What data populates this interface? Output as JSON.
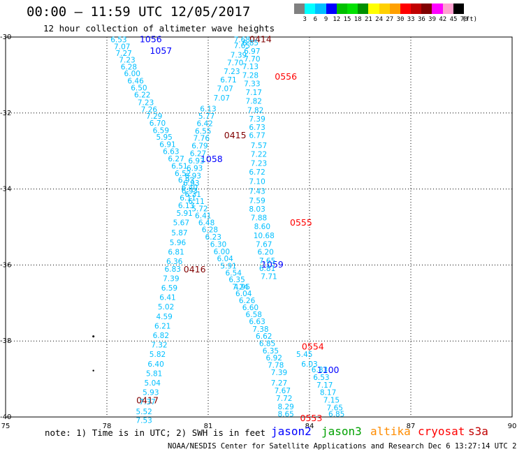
{
  "header": {
    "title": "00:00 – 11:59 UTC 12/05/2017",
    "subtitle": "12 hour collection of altimeter wave heights"
  },
  "colorbar": {
    "colors": [
      "#808080",
      "#00ffff",
      "#00bfff",
      "#0000ff",
      "#00c000",
      "#00e000",
      "#009000",
      "#ffff00",
      "#ffd000",
      "#ffa000",
      "#ff0000",
      "#c00000",
      "#800000",
      "#ff00ff",
      "#ffa0d0",
      "#000000"
    ],
    "labels": [
      "3",
      "6",
      "9",
      "12",
      "15",
      "18",
      "21",
      "24",
      "27",
      "30",
      "33",
      "36",
      "39",
      "42",
      "45",
      "70",
      "(ft)"
    ]
  },
  "note": "note: 1) Time is in UTC; 2) SWH is in feet",
  "legend": [
    {
      "name": "jason2",
      "color": "#0000ff"
    },
    {
      "name": "jason3",
      "color": "#00a000"
    },
    {
      "name": "altika",
      "color": "#ff8c00"
    },
    {
      "name": "cryosat",
      "color": "#ff0000"
    },
    {
      "name": "s3a",
      "color": "#c00000"
    }
  ],
  "footer": "NOAA/NESDIS Center for Satellite Applications and Research    Dec  6 13:27:14 UTC 2017",
  "chart_data": {
    "type": "scatter",
    "title": "00:00 – 11:59 UTC 12/05/2017",
    "subtitle": "12 hour collection of altimeter wave heights",
    "xlabel": "",
    "ylabel": "",
    "xlim": [
      75,
      90
    ],
    "ylim": [
      -40,
      -30
    ],
    "x_ticks": [
      "75",
      "78",
      "81",
      "84",
      "87",
      "90"
    ],
    "y_ticks": [
      "-30",
      "-32",
      "-34",
      "-36",
      "-38",
      "-40"
    ],
    "grid": true,
    "series": [
      {
        "name": "jason2",
        "color": "#0000ff",
        "labels": [
          {
            "text": "1056",
            "x": 79.3,
            "y": -30.05
          },
          {
            "text": "1057",
            "x": 79.6,
            "y": -30.35
          },
          {
            "text": "1058",
            "x": 81.1,
            "y": -33.2
          },
          {
            "text": "1059",
            "x": 82.9,
            "y": -35.97
          },
          {
            "text": "1100",
            "x": 84.55,
            "y": -38.75
          }
        ]
      },
      {
        "name": "s3a",
        "color": "#800000",
        "labels": [
          {
            "text": "0414",
            "x": 82.55,
            "y": -30.05
          },
          {
            "text": "0415",
            "x": 81.8,
            "y": -32.57
          },
          {
            "text": "0416",
            "x": 80.6,
            "y": -36.1
          },
          {
            "text": "0417",
            "x": 79.2,
            "y": -39.55
          }
        ]
      },
      {
        "name": "cryosat",
        "color": "#ff0000",
        "labels": [
          {
            "text": "0556",
            "x": 83.3,
            "y": -31.03
          },
          {
            "text": "0555",
            "x": 83.75,
            "y": -34.87
          },
          {
            "text": "0554",
            "x": 84.1,
            "y": -38.13
          },
          {
            "text": "0553",
            "x": 84.05,
            "y": -40.02
          }
        ]
      },
      {
        "name": "track-1056",
        "color": "#00bfff",
        "points": [
          {
            "x": 78.35,
            "y": -30.06,
            "swh": "6.53"
          },
          {
            "x": 78.45,
            "y": -30.25,
            "swh": "7.07"
          },
          {
            "x": 78.5,
            "y": -30.42,
            "swh": "7.27"
          },
          {
            "x": 78.6,
            "y": -30.6,
            "swh": "7.23"
          },
          {
            "x": 78.65,
            "y": -30.78,
            "swh": "6.28"
          },
          {
            "x": 78.75,
            "y": -30.96,
            "swh": "6.00"
          },
          {
            "x": 78.85,
            "y": -31.15,
            "swh": "6.46"
          },
          {
            "x": 78.95,
            "y": -31.33,
            "swh": "6.50"
          },
          {
            "x": 79.05,
            "y": -31.52,
            "swh": "6.22"
          },
          {
            "x": 79.15,
            "y": -31.72,
            "swh": "7.23"
          },
          {
            "x": 79.25,
            "y": -31.9,
            "swh": "7.26"
          },
          {
            "x": 79.4,
            "y": -32.08,
            "swh": "7.29"
          },
          {
            "x": 79.5,
            "y": -32.26,
            "swh": "6.70"
          },
          {
            "x": 79.6,
            "y": -32.45,
            "swh": "6.59"
          },
          {
            "x": 79.7,
            "y": -32.63,
            "swh": "5.95"
          },
          {
            "x": 79.8,
            "y": -32.82,
            "swh": "6.91"
          },
          {
            "x": 79.9,
            "y": -33.01,
            "swh": "6.63"
          },
          {
            "x": 80.05,
            "y": -33.2,
            "swh": "6.27"
          },
          {
            "x": 80.15,
            "y": -33.39,
            "swh": "6.51"
          },
          {
            "x": 80.25,
            "y": -33.58,
            "swh": "6.52"
          },
          {
            "x": 80.35,
            "y": -33.76,
            "swh": "6.93"
          },
          {
            "x": 80.45,
            "y": -33.95,
            "swh": "6.40"
          },
          {
            "x": 80.55,
            "y": -34.14,
            "swh": "6.31"
          },
          {
            "x": 80.65,
            "y": -34.32,
            "swh": "6.11"
          },
          {
            "x": 80.75,
            "y": -34.51,
            "swh": "5.72"
          },
          {
            "x": 80.85,
            "y": -34.7,
            "swh": "6.41"
          },
          {
            "x": 80.95,
            "y": -34.88,
            "swh": "6.48"
          },
          {
            "x": 81.05,
            "y": -35.06,
            "swh": "6.28"
          },
          {
            "x": 81.15,
            "y": -35.26,
            "swh": "6.23"
          },
          {
            "x": 81.3,
            "y": -35.45,
            "swh": "6.30"
          },
          {
            "x": 81.4,
            "y": -35.64,
            "swh": "6.00"
          },
          {
            "x": 81.5,
            "y": -35.83,
            "swh": "6.04"
          },
          {
            "x": 81.6,
            "y": -36.02,
            "swh": "5.91"
          },
          {
            "x": 81.75,
            "y": -36.2,
            "swh": "6.54"
          },
          {
            "x": 81.85,
            "y": -36.38,
            "swh": "6.35"
          },
          {
            "x": 82.0,
            "y": -36.57,
            "swh": "4.95"
          }
        ]
      },
      {
        "name": "track-1057",
        "color": "#00bfff",
        "points": [
          {
            "x": 81.95,
            "y": -36.57,
            "swh": "7.24"
          },
          {
            "x": 82.05,
            "y": -36.75,
            "swh": "6.04"
          },
          {
            "x": 82.15,
            "y": -36.93,
            "swh": "6.26"
          },
          {
            "x": 82.25,
            "y": -37.11,
            "swh": "6.60"
          },
          {
            "x": 82.35,
            "y": -37.3,
            "swh": "6.58"
          },
          {
            "x": 82.45,
            "y": -37.48,
            "swh": "6.63"
          },
          {
            "x": 82.55,
            "y": -37.68,
            "swh": "7.38"
          },
          {
            "x": 82.65,
            "y": -37.87,
            "swh": "6.62"
          },
          {
            "x": 82.75,
            "y": -38.06,
            "swh": "6.85"
          },
          {
            "x": 82.85,
            "y": -38.25,
            "swh": "6.35"
          },
          {
            "x": 82.95,
            "y": -38.44,
            "swh": "6.92"
          },
          {
            "x": 83.0,
            "y": -38.63,
            "swh": "7.78"
          },
          {
            "x": 83.1,
            "y": -38.82,
            "swh": "7.39"
          },
          {
            "x": 83.1,
            "y": -39.1,
            "swh": "7.27"
          },
          {
            "x": 83.2,
            "y": -39.3,
            "swh": "7.67"
          },
          {
            "x": 83.25,
            "y": -39.5,
            "swh": "7.72"
          },
          {
            "x": 83.3,
            "y": -39.72,
            "swh": "8.29"
          },
          {
            "x": 83.3,
            "y": -39.92,
            "swh": "8.65"
          }
        ]
      },
      {
        "name": "track-1058",
        "color": "#00bfff",
        "points": [
          {
            "x": 81.0,
            "y": -31.88,
            "swh": "6.13"
          },
          {
            "x": 80.95,
            "y": -32.08,
            "swh": "5.77"
          },
          {
            "x": 80.9,
            "y": -32.27,
            "swh": "6.42"
          },
          {
            "x": 80.85,
            "y": -32.47,
            "swh": "6.55"
          },
          {
            "x": 80.8,
            "y": -32.66,
            "swh": "7.76"
          },
          {
            "x": 80.75,
            "y": -32.86,
            "swh": "6.79"
          },
          {
            "x": 80.7,
            "y": -33.06,
            "swh": "6.27"
          },
          {
            "x": 80.65,
            "y": -33.25,
            "swh": "6.93"
          },
          {
            "x": 80.6,
            "y": -33.45,
            "swh": "6.93"
          },
          {
            "x": 80.55,
            "y": -33.65,
            "swh": "6.93"
          },
          {
            "x": 80.5,
            "y": -33.84,
            "swh": "6.93"
          },
          {
            "x": 80.45,
            "y": -34.04,
            "swh": "6.93"
          },
          {
            "x": 80.4,
            "y": -34.23,
            "swh": "6.11"
          },
          {
            "x": 80.35,
            "y": -34.43,
            "swh": "6.13"
          },
          {
            "x": 80.3,
            "y": -34.63,
            "swh": "5.91"
          },
          {
            "x": 80.2,
            "y": -34.88,
            "swh": "5.67"
          },
          {
            "x": 80.15,
            "y": -35.15,
            "swh": "5.87"
          },
          {
            "x": 80.1,
            "y": -35.4,
            "swh": "5.96"
          },
          {
            "x": 80.05,
            "y": -35.65,
            "swh": "6.81"
          },
          {
            "x": 80.0,
            "y": -35.9,
            "swh": "6.36"
          },
          {
            "x": 79.95,
            "y": -36.1,
            "swh": "6.83"
          },
          {
            "x": 79.9,
            "y": -36.35,
            "swh": "7.39"
          },
          {
            "x": 79.85,
            "y": -36.6,
            "swh": "6.59"
          },
          {
            "x": 79.8,
            "y": -36.85,
            "swh": "6.41"
          },
          {
            "x": 79.75,
            "y": -37.1,
            "swh": "5.02"
          },
          {
            "x": 79.7,
            "y": -37.35,
            "swh": "4.59"
          },
          {
            "x": 79.65,
            "y": -37.6,
            "swh": "6.21"
          },
          {
            "x": 79.6,
            "y": -37.85,
            "swh": "6.82"
          },
          {
            "x": 79.55,
            "y": -38.1,
            "swh": "7.32"
          },
          {
            "x": 79.5,
            "y": -38.35,
            "swh": "5.82"
          },
          {
            "x": 79.45,
            "y": -38.6,
            "swh": "6.40"
          },
          {
            "x": 79.4,
            "y": -38.85,
            "swh": "5.81"
          },
          {
            "x": 79.35,
            "y": -39.1,
            "swh": "5.04"
          },
          {
            "x": 79.3,
            "y": -39.35,
            "swh": "5.93"
          },
          {
            "x": 79.2,
            "y": -39.6,
            "swh": "7.37"
          },
          {
            "x": 79.1,
            "y": -39.85,
            "swh": "5.52"
          },
          {
            "x": 79.1,
            "y": -40.08,
            "swh": "7.53"
          }
        ]
      },
      {
        "name": "track-0414",
        "color": "#00bfff",
        "points": [
          {
            "x": 82.0,
            "y": -30.06,
            "swh": "7.68"
          },
          {
            "x": 82.0,
            "y": -30.22,
            "swh": "7.65"
          },
          {
            "x": 82.25,
            "y": -30.15,
            "swh": "6.85"
          },
          {
            "x": 82.3,
            "y": -30.37,
            "swh": "6.97"
          },
          {
            "x": 81.9,
            "y": -30.47,
            "swh": "7.39"
          },
          {
            "x": 82.3,
            "y": -30.57,
            "swh": "7.70"
          },
          {
            "x": 81.8,
            "y": -30.67,
            "swh": "7.70"
          },
          {
            "x": 82.25,
            "y": -30.77,
            "swh": "7.13"
          },
          {
            "x": 81.7,
            "y": -30.9,
            "swh": "7.23"
          },
          {
            "x": 82.25,
            "y": -31.0,
            "swh": "7.28"
          },
          {
            "x": 81.6,
            "y": -31.12,
            "swh": "6.71"
          },
          {
            "x": 82.3,
            "y": -31.22,
            "swh": "7.33"
          },
          {
            "x": 81.5,
            "y": -31.35,
            "swh": "7.07"
          },
          {
            "x": 82.35,
            "y": -31.45,
            "swh": "7.17"
          },
          {
            "x": 81.4,
            "y": -31.6,
            "swh": "7.07"
          },
          {
            "x": 82.35,
            "y": -31.68,
            "swh": "7.82"
          },
          {
            "x": 82.4,
            "y": -31.92,
            "swh": "7.82"
          },
          {
            "x": 82.45,
            "y": -32.15,
            "swh": "7.39"
          },
          {
            "x": 82.45,
            "y": -32.37,
            "swh": "6.73"
          },
          {
            "x": 82.45,
            "y": -32.58,
            "swh": "6.77"
          },
          {
            "x": 82.5,
            "y": -32.85,
            "swh": "7.57"
          },
          {
            "x": 82.5,
            "y": -33.08,
            "swh": "7.22"
          },
          {
            "x": 82.5,
            "y": -33.32,
            "swh": "7.23"
          },
          {
            "x": 82.45,
            "y": -33.55,
            "swh": "6.72"
          },
          {
            "x": 82.45,
            "y": -33.8,
            "swh": "7.10"
          },
          {
            "x": 82.45,
            "y": -34.05,
            "swh": "7.43"
          },
          {
            "x": 82.45,
            "y": -34.3,
            "swh": "7.59"
          },
          {
            "x": 82.45,
            "y": -34.52,
            "swh": "8.03"
          },
          {
            "x": 82.5,
            "y": -34.75,
            "swh": "7.88"
          },
          {
            "x": 82.6,
            "y": -34.98,
            "swh": "8.60"
          },
          {
            "x": 82.65,
            "y": -35.22,
            "swh": "10.68"
          },
          {
            "x": 82.65,
            "y": -35.45,
            "swh": "7.67"
          },
          {
            "x": 82.7,
            "y": -35.65,
            "swh": "6.20"
          },
          {
            "x": 82.75,
            "y": -35.88,
            "swh": "7.65"
          },
          {
            "x": 82.75,
            "y": -36.08,
            "swh": "6.81"
          },
          {
            "x": 82.8,
            "y": -36.3,
            "swh": "7.71"
          }
        ]
      },
      {
        "name": "track-1100",
        "color": "#00bfff",
        "points": [
          {
            "x": 83.85,
            "y": -38.35,
            "swh": "5.45"
          },
          {
            "x": 84.0,
            "y": -38.6,
            "swh": "6.03"
          },
          {
            "x": 84.3,
            "y": -38.75,
            "swh": "6.83"
          },
          {
            "x": 84.35,
            "y": -38.95,
            "swh": "6.53"
          },
          {
            "x": 84.45,
            "y": -39.15,
            "swh": "7.17"
          },
          {
            "x": 84.55,
            "y": -39.35,
            "swh": "8.17"
          },
          {
            "x": 84.65,
            "y": -39.55,
            "swh": "7.15"
          },
          {
            "x": 84.75,
            "y": -39.75,
            "swh": "7.65"
          },
          {
            "x": 84.8,
            "y": -39.92,
            "swh": "6.85"
          }
        ]
      }
    ]
  }
}
